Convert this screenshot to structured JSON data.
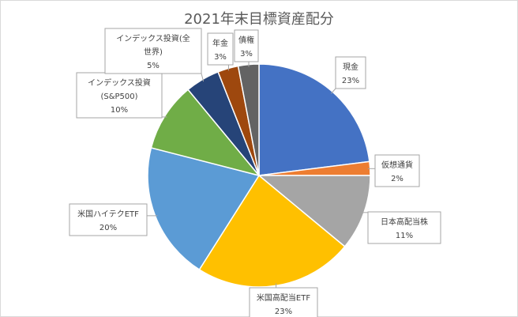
{
  "chart_data": {
    "type": "pie",
    "title": "2021年末目標資産配分",
    "slices": [
      {
        "label": "現金",
        "value": 23,
        "pct_text": "23%",
        "color": "#4472c4"
      },
      {
        "label": "仮想通貨",
        "value": 2,
        "pct_text": "2%",
        "color": "#ed7d31"
      },
      {
        "label": "日本高配当株",
        "value": 11,
        "pct_text": "11%",
        "color": "#a5a5a5"
      },
      {
        "label": "米国高配当ETF",
        "value": 23,
        "pct_text": "23%",
        "color": "#ffc000"
      },
      {
        "label": "米国ハイテクETF",
        "value": 20,
        "pct_text": "20%",
        "color": "#5b9bd5"
      },
      {
        "label": "インデックス投資(S&P500)",
        "value": 10,
        "pct_text": "10%",
        "color": "#70ad47"
      },
      {
        "label": "インデックス投資(全世界)",
        "value": 5,
        "pct_text": "5%",
        "color": "#264478"
      },
      {
        "label": "年金",
        "value": 3,
        "pct_text": "3%",
        "color": "#9e480e"
      },
      {
        "label": "債権",
        "value": 3,
        "pct_text": "3%",
        "color": "#636363"
      }
    ]
  }
}
